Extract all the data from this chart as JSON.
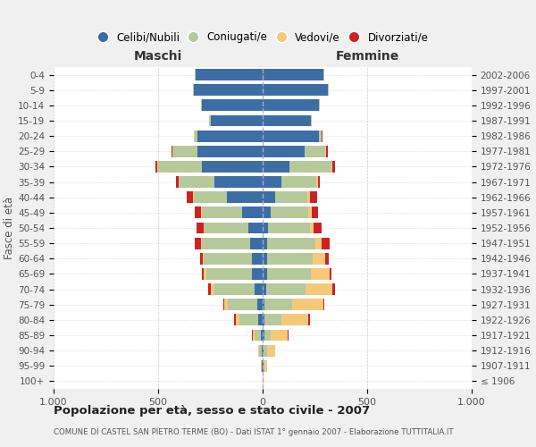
{
  "age_groups": [
    "100+",
    "95-99",
    "90-94",
    "85-89",
    "80-84",
    "75-79",
    "70-74",
    "65-69",
    "60-64",
    "55-59",
    "50-54",
    "45-49",
    "40-44",
    "35-39",
    "30-34",
    "25-29",
    "20-24",
    "15-19",
    "10-14",
    "5-9",
    "0-4"
  ],
  "birth_years": [
    "≤ 1906",
    "1907-1911",
    "1912-1916",
    "1917-1921",
    "1922-1926",
    "1927-1931",
    "1932-1936",
    "1937-1941",
    "1942-1946",
    "1947-1951",
    "1952-1956",
    "1957-1961",
    "1962-1966",
    "1967-1971",
    "1972-1976",
    "1977-1981",
    "1982-1986",
    "1987-1991",
    "1992-1996",
    "1997-2001",
    "2002-2006"
  ],
  "males": {
    "celibi": [
      2,
      3,
      5,
      8,
      20,
      25,
      40,
      50,
      50,
      60,
      70,
      100,
      170,
      230,
      290,
      310,
      310,
      250,
      290,
      330,
      320
    ],
    "coniugati": [
      0,
      3,
      10,
      30,
      90,
      140,
      190,
      220,
      230,
      230,
      210,
      190,
      160,
      170,
      210,
      120,
      15,
      5,
      5,
      5,
      5
    ],
    "vedovi": [
      0,
      2,
      5,
      10,
      20,
      20,
      20,
      10,
      5,
      3,
      3,
      3,
      3,
      3,
      3,
      3,
      3,
      0,
      0,
      0,
      0
    ],
    "divorziati": [
      0,
      0,
      0,
      5,
      5,
      5,
      10,
      10,
      15,
      30,
      35,
      30,
      30,
      10,
      10,
      5,
      0,
      0,
      0,
      0,
      0
    ]
  },
  "females": {
    "nubili": [
      2,
      3,
      5,
      8,
      10,
      10,
      15,
      20,
      20,
      20,
      25,
      40,
      60,
      90,
      130,
      200,
      270,
      230,
      270,
      310,
      290
    ],
    "coniugate": [
      0,
      5,
      15,
      30,
      80,
      130,
      190,
      210,
      220,
      230,
      200,
      180,
      155,
      165,
      200,
      100,
      10,
      5,
      5,
      5,
      5
    ],
    "vedove": [
      2,
      15,
      40,
      80,
      130,
      150,
      130,
      90,
      60,
      30,
      20,
      15,
      10,
      10,
      5,
      5,
      3,
      0,
      0,
      0,
      0
    ],
    "divorziate": [
      0,
      0,
      0,
      5,
      5,
      5,
      10,
      10,
      15,
      40,
      35,
      30,
      35,
      10,
      10,
      5,
      3,
      0,
      0,
      0,
      0
    ]
  },
  "colors": {
    "celibi": "#3c6ea5",
    "coniugati": "#b5c99a",
    "vedovi": "#f5c97a",
    "divorziati": "#cc2222"
  },
  "title": "Popolazione per età, sesso e stato civile - 2007",
  "subtitle": "COMUNE DI CASTEL SAN PIETRO TERME (BO) - Dati ISTAT 1° gennaio 2007 - Elaborazione TUTTITALIA.IT",
  "xlabel_left": "Maschi",
  "xlabel_right": "Femmine",
  "ylabel_left": "Fasce di età",
  "xlim": 1000,
  "bg_color": "#f0f0f0",
  "plot_bg": "#ffffff",
  "grid_color": "#cccccc"
}
